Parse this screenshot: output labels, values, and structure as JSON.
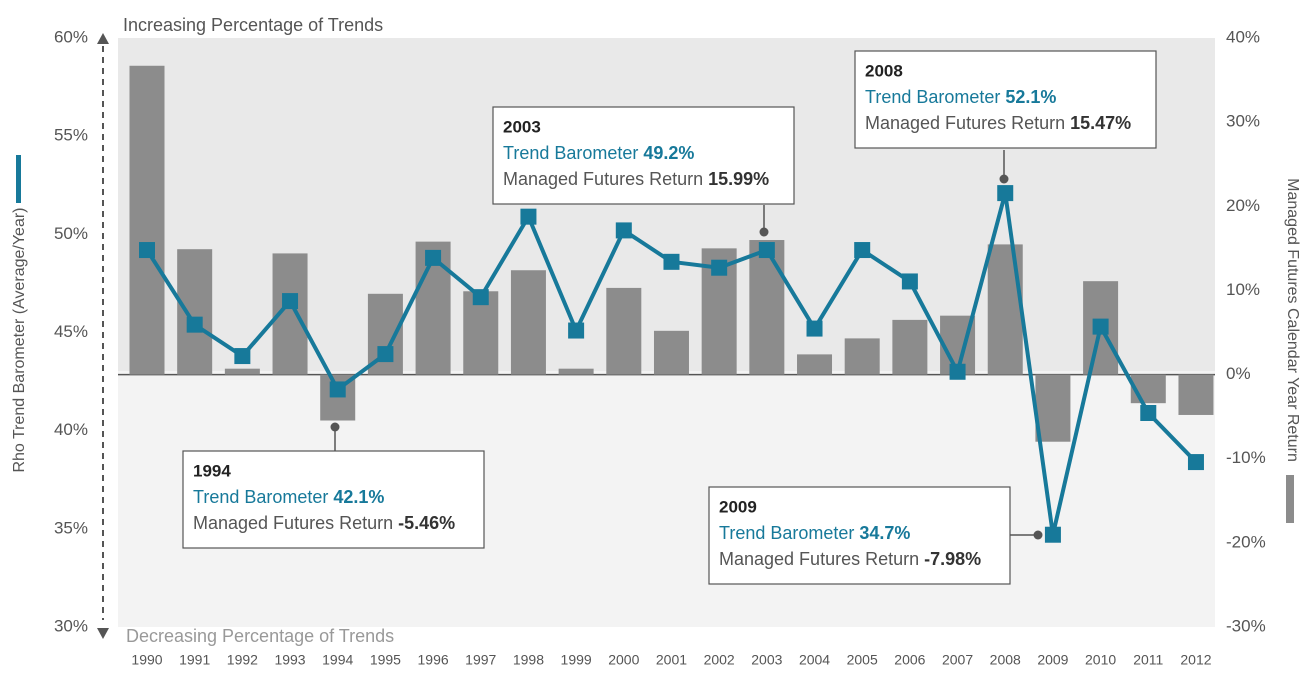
{
  "chart_data": {
    "type": "bar-line",
    "top_note": "Increasing Percentage of Trends",
    "bottom_note": "Decreasing Percentage of Trends",
    "y_label": "Rho Trend Barometer (Average/Year)",
    "y2_label": "Managed Futures Calendar Year Return",
    "categories": [
      "1990",
      "1991",
      "1992",
      "1993",
      "1994",
      "1995",
      "1996",
      "1997",
      "1998",
      "1999",
      "2000",
      "2001",
      "2002",
      "2003",
      "2004",
      "2005",
      "2006",
      "2007",
      "2008",
      "2009",
      "2010",
      "2011",
      "2012"
    ],
    "series": [
      {
        "name": "Managed Futures Return",
        "type": "bar",
        "axis": "y2",
        "color": "#8c8c8c",
        "values": [
          36.7,
          14.9,
          0.7,
          14.4,
          -5.46,
          9.6,
          15.8,
          9.9,
          12.4,
          0.7,
          10.3,
          5.2,
          15.0,
          15.99,
          2.4,
          4.3,
          6.5,
          7.0,
          15.47,
          -7.98,
          11.1,
          -3.4,
          -4.8
        ]
      },
      {
        "name": "Trend Barometer",
        "type": "line",
        "axis": "y",
        "color": "#17799a",
        "values": [
          49.2,
          45.4,
          43.8,
          46.6,
          42.1,
          43.9,
          48.8,
          46.8,
          50.9,
          45.1,
          50.2,
          48.6,
          48.3,
          49.2,
          45.2,
          49.2,
          47.6,
          43.0,
          52.1,
          34.7,
          45.3,
          40.9,
          38.4
        ]
      }
    ],
    "ylim": [
      30,
      60
    ],
    "yticks": [
      {
        "value": 30,
        "label": "30%"
      },
      {
        "value": 35,
        "label": "35%"
      },
      {
        "value": 40,
        "label": "40%"
      },
      {
        "value": 45,
        "label": "45%"
      },
      {
        "value": 50,
        "label": "50%"
      },
      {
        "value": 55,
        "label": "55%"
      },
      {
        "value": 60,
        "label": "60%"
      }
    ],
    "y2lim": [
      -30,
      40
    ],
    "y2ticks": [
      {
        "value": -30,
        "label": "-30%"
      },
      {
        "value": -20,
        "label": "-20%"
      },
      {
        "value": -10,
        "label": "-10%"
      },
      {
        "value": 0,
        "label": "0%"
      },
      {
        "value": 10,
        "label": "10%"
      },
      {
        "value": 20,
        "label": "20%"
      },
      {
        "value": 30,
        "label": "30%"
      },
      {
        "value": 40,
        "label": "40%"
      }
    ],
    "annotations": [
      {
        "title": "1994",
        "lines": [
          {
            "label": "Trend Barometer",
            "value": "42.1%"
          },
          {
            "label": "Managed Futures Return",
            "value": "-5.46%"
          }
        ]
      },
      {
        "title": "2003",
        "lines": [
          {
            "label": "Trend Barometer",
            "value": "49.2%"
          },
          {
            "label": "Managed Futures Return",
            "value": "15.99%"
          }
        ]
      },
      {
        "title": "2008",
        "lines": [
          {
            "label": "Trend Barometer",
            "value": "52.1%"
          },
          {
            "label": "Managed Futures Return",
            "value": "15.47%"
          }
        ]
      },
      {
        "title": "2009",
        "lines": [
          {
            "label": "Trend Barometer",
            "value": "34.7%"
          },
          {
            "label": "Managed Futures Return",
            "value": "-7.98%"
          }
        ]
      }
    ]
  }
}
